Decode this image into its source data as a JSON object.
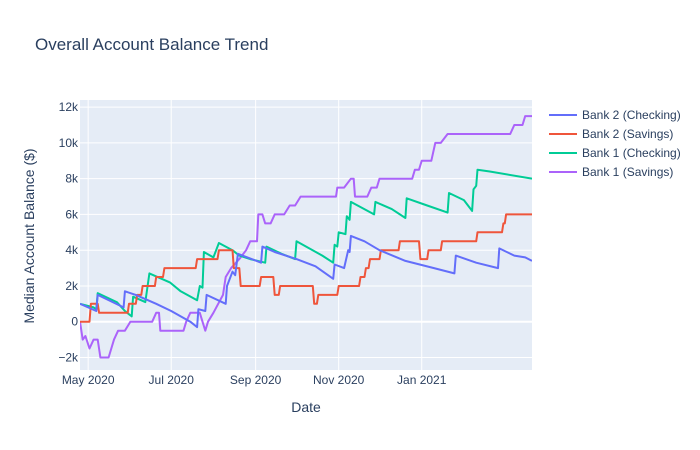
{
  "chart_data": {
    "type": "line",
    "title": "Overall Account Balance Trend",
    "xlabel": "Date",
    "ylabel": "Median Account Balance ($)",
    "x_range": [
      "2020-04-25",
      "2021-03-23"
    ],
    "ylim": [
      -2700,
      12400
    ],
    "grid": true,
    "legend_position": "right",
    "background_color": "#e5ecf6",
    "x_ticks": [
      {
        "date": "2020-05-01",
        "label": "May 2020"
      },
      {
        "date": "2020-07-01",
        "label": "Jul 2020"
      },
      {
        "date": "2020-09-01",
        "label": "Sep 2020"
      },
      {
        "date": "2020-11-01",
        "label": "Nov 2020"
      },
      {
        "date": "2021-01-01",
        "label": "Jan 2021"
      }
    ],
    "y_ticks": [
      {
        "value": -2000,
        "label": "−2k"
      },
      {
        "value": 0,
        "label": "0"
      },
      {
        "value": 2000,
        "label": "2k"
      },
      {
        "value": 4000,
        "label": "4k"
      },
      {
        "value": 6000,
        "label": "6k"
      },
      {
        "value": 8000,
        "label": "8k"
      },
      {
        "value": 10000,
        "label": "10k"
      },
      {
        "value": 12000,
        "label": "12k"
      }
    ],
    "series": [
      {
        "name": "Bank 2 (Checking)",
        "color": "#636efa",
        "points": [
          [
            "2020-04-25",
            1000
          ],
          [
            "2020-05-07",
            600
          ],
          [
            "2020-05-08",
            1500
          ],
          [
            "2020-05-27",
            800
          ],
          [
            "2020-05-28",
            1700
          ],
          [
            "2020-06-05",
            1500
          ],
          [
            "2020-06-20",
            1000
          ],
          [
            "2020-07-01",
            600
          ],
          [
            "2020-07-15",
            0
          ],
          [
            "2020-07-20",
            -300
          ],
          [
            "2020-07-21",
            700
          ],
          [
            "2020-07-26",
            600
          ],
          [
            "2020-07-27",
            1500
          ],
          [
            "2020-08-10",
            1000
          ],
          [
            "2020-08-11",
            2000
          ],
          [
            "2020-08-15",
            2800
          ],
          [
            "2020-08-17",
            2600
          ],
          [
            "2020-08-19",
            3800
          ],
          [
            "2020-09-05",
            3300
          ],
          [
            "2020-09-06",
            4200
          ],
          [
            "2020-09-15",
            3900
          ],
          [
            "2020-10-01",
            3500
          ],
          [
            "2020-10-15",
            3100
          ],
          [
            "2020-10-28",
            2400
          ],
          [
            "2020-10-29",
            3200
          ],
          [
            "2020-11-05",
            3000
          ],
          [
            "2020-11-08",
            4000
          ],
          [
            "2020-11-09",
            3900
          ],
          [
            "2020-11-10",
            4800
          ],
          [
            "2020-11-20",
            4500
          ],
          [
            "2020-12-01",
            4000
          ],
          [
            "2020-12-20",
            3400
          ],
          [
            "2021-01-10",
            3000
          ],
          [
            "2021-01-25",
            2700
          ],
          [
            "2021-01-26",
            3700
          ],
          [
            "2021-02-10",
            3300
          ],
          [
            "2021-02-26",
            3000
          ],
          [
            "2021-02-27",
            4100
          ],
          [
            "2021-03-10",
            3700
          ],
          [
            "2021-03-18",
            3600
          ],
          [
            "2021-03-23",
            3400
          ]
        ]
      },
      {
        "name": "Bank 2 (Savings)",
        "color": "#ef553b",
        "points": [
          [
            "2020-04-25",
            0
          ],
          [
            "2020-05-02",
            0
          ],
          [
            "2020-05-03",
            1000
          ],
          [
            "2020-05-08",
            1000
          ],
          [
            "2020-05-09",
            500
          ],
          [
            "2020-05-30",
            500
          ],
          [
            "2020-05-31",
            1000
          ],
          [
            "2020-06-05",
            1000
          ],
          [
            "2020-06-06",
            1500
          ],
          [
            "2020-06-09",
            1500
          ],
          [
            "2020-06-10",
            2000
          ],
          [
            "2020-06-19",
            2000
          ],
          [
            "2020-06-20",
            2500
          ],
          [
            "2020-06-25",
            2500
          ],
          [
            "2020-06-26",
            3000
          ],
          [
            "2020-07-19",
            3000
          ],
          [
            "2020-07-20",
            3500
          ],
          [
            "2020-08-04",
            3500
          ],
          [
            "2020-08-05",
            4000
          ],
          [
            "2020-08-15",
            4000
          ],
          [
            "2020-08-16",
            3000
          ],
          [
            "2020-08-20",
            3000
          ],
          [
            "2020-08-21",
            2000
          ],
          [
            "2020-09-04",
            2000
          ],
          [
            "2020-09-05",
            2500
          ],
          [
            "2020-09-14",
            2500
          ],
          [
            "2020-09-15",
            1500
          ],
          [
            "2020-09-18",
            1500
          ],
          [
            "2020-09-19",
            2000
          ],
          [
            "2020-10-13",
            2000
          ],
          [
            "2020-10-14",
            1000
          ],
          [
            "2020-10-16",
            1000
          ],
          [
            "2020-10-17",
            1500
          ],
          [
            "2020-10-31",
            1500
          ],
          [
            "2020-11-01",
            2000
          ],
          [
            "2020-11-16",
            2000
          ],
          [
            "2020-11-17",
            2500
          ],
          [
            "2020-11-20",
            2500
          ],
          [
            "2020-11-21",
            3000
          ],
          [
            "2020-11-23",
            3000
          ],
          [
            "2020-11-24",
            3500
          ],
          [
            "2020-12-01",
            3500
          ],
          [
            "2020-12-02",
            4000
          ],
          [
            "2020-12-15",
            4000
          ],
          [
            "2020-12-16",
            4500
          ],
          [
            "2020-12-30",
            4500
          ],
          [
            "2020-12-31",
            3500
          ],
          [
            "2021-01-05",
            3500
          ],
          [
            "2021-01-06",
            4000
          ],
          [
            "2021-01-15",
            4000
          ],
          [
            "2021-01-16",
            4500
          ],
          [
            "2021-02-10",
            4500
          ],
          [
            "2021-02-11",
            5000
          ],
          [
            "2021-03-01",
            5000
          ],
          [
            "2021-03-02",
            5500
          ],
          [
            "2021-03-03",
            5500
          ],
          [
            "2021-03-04",
            6000
          ],
          [
            "2021-03-23",
            6000
          ]
        ]
      },
      {
        "name": "Bank 1 (Checking)",
        "color": "#00cc96",
        "points": [
          [
            "2020-04-25",
            1000
          ],
          [
            "2020-05-05",
            800
          ],
          [
            "2020-05-07",
            700
          ],
          [
            "2020-05-08",
            1600
          ],
          [
            "2020-05-22",
            1100
          ],
          [
            "2020-05-28",
            600
          ],
          [
            "2020-06-02",
            300
          ],
          [
            "2020-06-03",
            1400
          ],
          [
            "2020-06-12",
            1100
          ],
          [
            "2020-06-15",
            2700
          ],
          [
            "2020-06-30",
            2200
          ],
          [
            "2020-07-08",
            1700
          ],
          [
            "2020-07-20",
            1200
          ],
          [
            "2020-07-22",
            2000
          ],
          [
            "2020-07-24",
            1900
          ],
          [
            "2020-07-25",
            3900
          ],
          [
            "2020-08-01",
            3600
          ],
          [
            "2020-08-05",
            4400
          ],
          [
            "2020-08-15",
            4000
          ],
          [
            "2020-08-20",
            3700
          ],
          [
            "2020-08-28",
            3500
          ],
          [
            "2020-09-08",
            3300
          ],
          [
            "2020-09-09",
            4200
          ],
          [
            "2020-09-20",
            3800
          ],
          [
            "2020-09-30",
            3500
          ],
          [
            "2020-10-01",
            4500
          ],
          [
            "2020-10-20",
            3700
          ],
          [
            "2020-10-28",
            3300
          ],
          [
            "2020-10-29",
            4300
          ],
          [
            "2020-10-31",
            4200
          ],
          [
            "2020-11-01",
            5000
          ],
          [
            "2020-11-06",
            4900
          ],
          [
            "2020-11-07",
            5900
          ],
          [
            "2020-11-09",
            5700
          ],
          [
            "2020-11-10",
            6700
          ],
          [
            "2020-11-27",
            6000
          ],
          [
            "2020-11-28",
            6700
          ],
          [
            "2020-12-10",
            6300
          ],
          [
            "2020-12-20",
            5800
          ],
          [
            "2020-12-21",
            6900
          ],
          [
            "2021-01-05",
            6500
          ],
          [
            "2021-01-20",
            6100
          ],
          [
            "2021-01-21",
            7200
          ],
          [
            "2021-02-01",
            6800
          ],
          [
            "2021-02-07",
            6200
          ],
          [
            "2021-02-08",
            7400
          ],
          [
            "2021-02-10",
            7600
          ],
          [
            "2021-02-11",
            8500
          ],
          [
            "2021-02-20",
            8400
          ],
          [
            "2021-03-23",
            8000
          ]
        ]
      },
      {
        "name": "Bank 1 (Savings)",
        "color": "#ab63fa",
        "points": [
          [
            "2020-04-25",
            0
          ],
          [
            "2020-04-27",
            -1000
          ],
          [
            "2020-04-29",
            -800
          ],
          [
            "2020-05-02",
            -1500
          ],
          [
            "2020-05-05",
            -1000
          ],
          [
            "2020-05-08",
            -1000
          ],
          [
            "2020-05-10",
            -2000
          ],
          [
            "2020-05-16",
            -2000
          ],
          [
            "2020-05-20",
            -1000
          ],
          [
            "2020-05-23",
            -500
          ],
          [
            "2020-05-28",
            -500
          ],
          [
            "2020-06-01",
            0
          ],
          [
            "2020-06-05",
            0
          ],
          [
            "2020-06-17",
            0
          ],
          [
            "2020-06-20",
            500
          ],
          [
            "2020-06-22",
            500
          ],
          [
            "2020-06-23",
            -500
          ],
          [
            "2020-07-10",
            -500
          ],
          [
            "2020-07-12",
            0
          ],
          [
            "2020-07-15",
            500
          ],
          [
            "2020-07-22",
            500
          ],
          [
            "2020-07-24",
            0
          ],
          [
            "2020-07-26",
            -500
          ],
          [
            "2020-07-28",
            0
          ],
          [
            "2020-08-01",
            500
          ],
          [
            "2020-08-08",
            1500
          ],
          [
            "2020-08-10",
            2500
          ],
          [
            "2020-08-14",
            3000
          ],
          [
            "2020-08-20",
            3500
          ],
          [
            "2020-08-25",
            4000
          ],
          [
            "2020-08-28",
            4500
          ],
          [
            "2020-09-02",
            4500
          ],
          [
            "2020-09-03",
            6000
          ],
          [
            "2020-09-06",
            6000
          ],
          [
            "2020-09-08",
            5500
          ],
          [
            "2020-09-12",
            5500
          ],
          [
            "2020-09-15",
            6000
          ],
          [
            "2020-09-22",
            6000
          ],
          [
            "2020-09-26",
            6500
          ],
          [
            "2020-09-30",
            6500
          ],
          [
            "2020-10-04",
            7000
          ],
          [
            "2020-10-30",
            7000
          ],
          [
            "2020-10-31",
            7500
          ],
          [
            "2020-11-05",
            7500
          ],
          [
            "2020-11-10",
            8000
          ],
          [
            "2020-11-12",
            8000
          ],
          [
            "2020-11-13",
            7000
          ],
          [
            "2020-11-22",
            7000
          ],
          [
            "2020-11-25",
            7500
          ],
          [
            "2020-11-29",
            7500
          ],
          [
            "2020-12-01",
            8000
          ],
          [
            "2020-12-25",
            8000
          ],
          [
            "2020-12-27",
            8500
          ],
          [
            "2020-12-30",
            8500
          ],
          [
            "2021-01-01",
            9000
          ],
          [
            "2021-01-08",
            9000
          ],
          [
            "2021-01-11",
            10000
          ],
          [
            "2021-01-15",
            10000
          ],
          [
            "2021-01-20",
            10500
          ],
          [
            "2021-03-07",
            10500
          ],
          [
            "2021-03-10",
            11000
          ],
          [
            "2021-03-16",
            11000
          ],
          [
            "2021-03-18",
            11500
          ],
          [
            "2021-03-23",
            11500
          ]
        ]
      }
    ]
  }
}
